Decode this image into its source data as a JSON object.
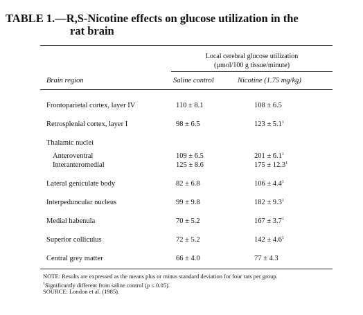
{
  "title": {
    "line1": "TABLE 1.—R,S-Nicotine effects on glucose utilization in the",
    "line2": "rat brain"
  },
  "header": {
    "group_line1": "Local cerebral glucose utilization",
    "group_line2": "(µmol/100 g tissue/minute)",
    "region": "Brain region",
    "col1": "Saline control",
    "col2": "Nicotine (1.75 mg/kg)"
  },
  "rows": [
    {
      "region": "Frontoparietal cortex, layer IV",
      "saline": "110 ± 8.1",
      "nicotine": "108 ± 6.5",
      "mark": ""
    },
    {
      "region": "Retrosplenial cortex, layer I",
      "saline": "98 ± 6.5",
      "nicotine": "123 ± 5.1",
      "mark": "1"
    },
    {
      "region": "Thalamic nuclei"
    },
    {
      "region": "Anteroventral",
      "saline": "109 ± 6.5",
      "nicotine": "201 ± 6.1",
      "mark": "1"
    },
    {
      "region": "Interanteromedial",
      "saline": "125 ± 8.6",
      "nicotine": "175 ± 12.3",
      "mark": "1"
    },
    {
      "region": "Lateral geniculate body",
      "saline": "82 ± 6.8",
      "nicotine": "106 ± 4.4",
      "mark": "1"
    },
    {
      "region": "Interpeduncular nucleus",
      "saline": "99 ± 9.8",
      "nicotine": "182 ± 9.3",
      "mark": "1"
    },
    {
      "region": "Medial habenula",
      "saline": "70 ± 5.2",
      "nicotine": "167 ± 3.7",
      "mark": "1"
    },
    {
      "region": "Superior colliculus",
      "saline": "72 ± 5.2",
      "nicotine": "142 ± 4.6",
      "mark": "1"
    },
    {
      "region": "Central grey matter",
      "saline": "66 ± 4.0",
      "nicotine": "77 ± 4.3",
      "mark": ""
    }
  ],
  "notes": {
    "note": "NOTE: Results are expressed as the means plus or minus standard deviation for four rats per group.",
    "footnote_mark": "1",
    "footnote": "Significantly different from saline control (p ≤ 0.05).",
    "source": "SOURCE: London et al. (1985)."
  }
}
